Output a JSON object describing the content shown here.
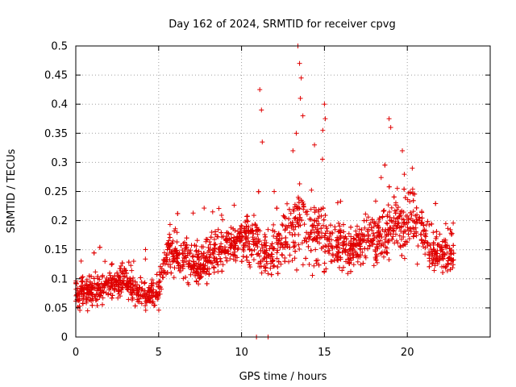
{
  "chart_data": {
    "type": "scatter",
    "title": "Day 162 of 2024, SRMTID for receiver cpvg",
    "xlabel": "GPS time / hours",
    "ylabel": "SRMTID / TECUs",
    "xlim": [
      0,
      25
    ],
    "ylim": [
      0,
      0.5
    ],
    "xticks": [
      0,
      5,
      10,
      15,
      20
    ],
    "yticks": [
      0,
      0.05,
      0.1,
      0.15,
      0.2,
      0.25,
      0.3,
      0.35,
      0.4,
      0.45,
      0.5
    ],
    "grid": true,
    "marker": "plus",
    "color": "#e00000",
    "series": [
      {
        "name": "SRMTID",
        "trend": [
          [
            0.0,
            0.075,
            0.02
          ],
          [
            1.0,
            0.08,
            0.02
          ],
          [
            2.0,
            0.09,
            0.02
          ],
          [
            3.0,
            0.095,
            0.022
          ],
          [
            4.0,
            0.07,
            0.02
          ],
          [
            5.0,
            0.085,
            0.025
          ],
          [
            5.5,
            0.15,
            0.03
          ],
          [
            6.5,
            0.14,
            0.03
          ],
          [
            7.5,
            0.12,
            0.03
          ],
          [
            8.5,
            0.15,
            0.03
          ],
          [
            9.5,
            0.16,
            0.03
          ],
          [
            10.5,
            0.17,
            0.035
          ],
          [
            11.5,
            0.14,
            0.035
          ],
          [
            12.5,
            0.16,
            0.04
          ],
          [
            13.5,
            0.2,
            0.06
          ],
          [
            14.5,
            0.18,
            0.05
          ],
          [
            15.5,
            0.16,
            0.035
          ],
          [
            16.5,
            0.15,
            0.03
          ],
          [
            17.5,
            0.17,
            0.035
          ],
          [
            18.5,
            0.18,
            0.04
          ],
          [
            19.5,
            0.19,
            0.045
          ],
          [
            20.5,
            0.2,
            0.04
          ],
          [
            21.5,
            0.15,
            0.03
          ],
          [
            22.8,
            0.14,
            0.03
          ]
        ],
        "highlights": [
          [
            11.1,
            0.425
          ],
          [
            11.2,
            0.39
          ],
          [
            11.25,
            0.335
          ],
          [
            13.4,
            0.5
          ],
          [
            13.5,
            0.47
          ],
          [
            13.6,
            0.445
          ],
          [
            13.55,
            0.41
          ],
          [
            13.7,
            0.38
          ],
          [
            15.0,
            0.4
          ],
          [
            15.05,
            0.375
          ],
          [
            14.9,
            0.355
          ],
          [
            18.9,
            0.375
          ],
          [
            19.0,
            0.36
          ],
          [
            19.7,
            0.32
          ],
          [
            20.3,
            0.29
          ],
          [
            10.9,
            0.0
          ],
          [
            11.6,
            0.0
          ],
          [
            13.3,
            0.35
          ],
          [
            14.4,
            0.33
          ],
          [
            13.1,
            0.32
          ]
        ]
      }
    ]
  }
}
